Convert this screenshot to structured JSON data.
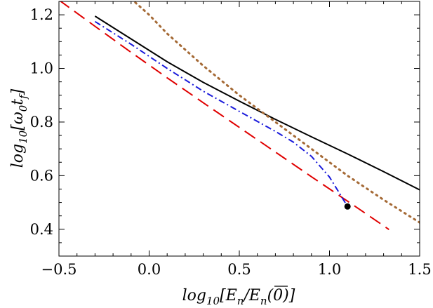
{
  "chart_data": {
    "type": "line",
    "title": "",
    "xlabel": {
      "prefix": "log",
      "sub": "10",
      "open": "[",
      "num_overlined": "E",
      "num_sub": "n",
      "slash": "/",
      "den": "E",
      "den_sub": "n",
      "den_arg": "(0)",
      "close": "]"
    },
    "ylabel": {
      "prefix": "log",
      "sub": "10",
      "open": "[",
      "omega": "ω",
      "omega_sub": "0",
      "t": "t",
      "t_sub": "f",
      "close": "]"
    },
    "xlim": [
      -0.5,
      1.5
    ],
    "ylim": [
      0.3,
      1.25
    ],
    "x_ticks": [
      {
        "value": -0.5,
        "label": "−0.5"
      },
      {
        "value": 0.0,
        "label": "0.0"
      },
      {
        "value": 0.5,
        "label": "0.5"
      },
      {
        "value": 1.0,
        "label": "1.0"
      },
      {
        "value": 1.5,
        "label": "1.5"
      }
    ],
    "y_ticks": [
      {
        "value": 0.4,
        "label": "0.4"
      },
      {
        "value": 0.6,
        "label": "0.6"
      },
      {
        "value": 0.8,
        "label": "0.8"
      },
      {
        "value": 1.0,
        "label": "1.0"
      },
      {
        "value": 1.2,
        "label": "1.2"
      }
    ],
    "grid": false,
    "legend": "none",
    "series": [
      {
        "style": "solid",
        "color": "#000000",
        "points": [
          [
            -0.3,
            1.195
          ],
          [
            -0.1,
            1.11
          ],
          [
            0.1,
            1.025
          ],
          [
            0.3,
            0.948
          ],
          [
            0.5,
            0.878
          ],
          [
            0.7,
            0.81
          ],
          [
            0.9,
            0.745
          ],
          [
            1.1,
            0.681
          ],
          [
            1.3,
            0.615
          ],
          [
            1.5,
            0.547
          ]
        ]
      },
      {
        "style": "dashed",
        "color": "#e00000",
        "points": [
          [
            -0.5,
            1.255
          ],
          [
            -0.3,
            1.157
          ],
          [
            -0.1,
            1.06
          ],
          [
            0.1,
            0.965
          ],
          [
            0.3,
            0.872
          ],
          [
            0.5,
            0.78
          ],
          [
            0.7,
            0.688
          ],
          [
            0.9,
            0.596
          ],
          [
            1.1,
            0.505
          ],
          [
            1.3,
            0.413
          ],
          [
            1.33,
            0.399
          ]
        ]
      },
      {
        "style": "dotted",
        "color": "#a56a36",
        "points": [
          [
            -0.1,
            1.26
          ],
          [
            0.0,
            1.2
          ],
          [
            0.1,
            1.13
          ],
          [
            0.2,
            1.07
          ],
          [
            0.3,
            1.01
          ],
          [
            0.5,
            0.9
          ],
          [
            0.7,
            0.8
          ],
          [
            0.9,
            0.7
          ],
          [
            1.1,
            0.6
          ],
          [
            1.3,
            0.51
          ],
          [
            1.5,
            0.425
          ]
        ]
      },
      {
        "style": "dashdot",
        "color": "#1a1adb",
        "points": [
          [
            -0.3,
            1.175
          ],
          [
            -0.1,
            1.09
          ],
          [
            0.1,
            1.0
          ],
          [
            0.3,
            0.915
          ],
          [
            0.5,
            0.84
          ],
          [
            0.7,
            0.765
          ],
          [
            0.8,
            0.725
          ],
          [
            0.9,
            0.672
          ],
          [
            1.0,
            0.595
          ],
          [
            1.05,
            0.54
          ],
          [
            1.1,
            0.485
          ]
        ]
      }
    ],
    "markers": [
      {
        "x": 1.1,
        "y": 0.485,
        "color": "#000000"
      }
    ]
  }
}
